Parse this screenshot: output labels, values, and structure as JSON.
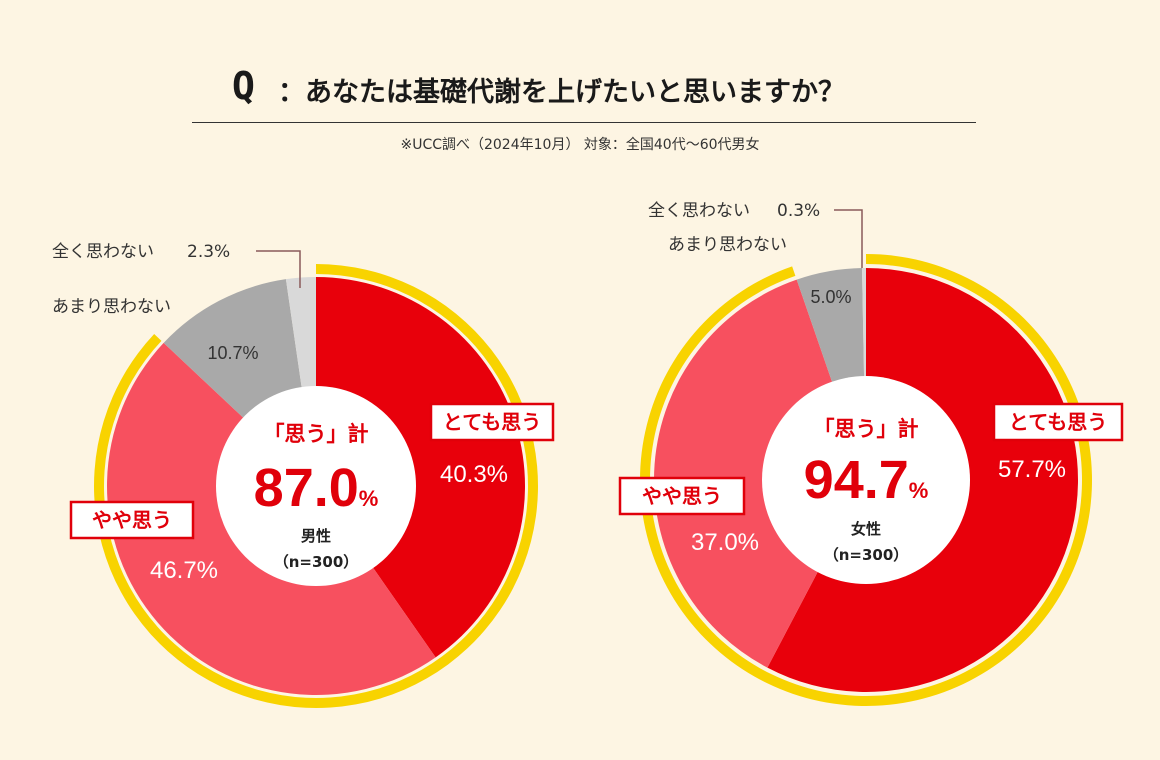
{
  "title": {
    "q": "Q",
    "text": "：あなたは基礎代謝を上げたいと思いますか？"
  },
  "note": "※UCC調べ（2024年10月） 対象：全国40代～60代男女",
  "colors": {
    "background": "#fdf5e3",
    "very_much": "#e8000b",
    "somewhat": "#f7505f",
    "not_really": "#a9a9a9",
    "not_at_all": "#d9d9d9",
    "ring": "#f8d300",
    "accent": "#e0000a"
  },
  "chart_data": [
    {
      "type": "pie",
      "group": "男性",
      "n_label": "（n=300）",
      "center_heading": "「思う」計",
      "center_value": "87.0",
      "center_unit": "%",
      "slices": [
        {
          "label": "とても思う",
          "value": 40.3,
          "value_text": "40.3%"
        },
        {
          "label": "やや思う",
          "value": 46.7,
          "value_text": "46.7%"
        },
        {
          "label": "あまり思わない",
          "value": 10.7,
          "value_text": "10.7%"
        },
        {
          "label": "全く思わない",
          "value": 2.3,
          "value_text": "2.3%"
        }
      ]
    },
    {
      "type": "pie",
      "group": "女性",
      "n_label": "（n=300）",
      "center_heading": "「思う」計",
      "center_value": "94.7",
      "center_unit": "%",
      "slices": [
        {
          "label": "とても思う",
          "value": 57.7,
          "value_text": "57.7%"
        },
        {
          "label": "やや思う",
          "value": 37.0,
          "value_text": "37.0%"
        },
        {
          "label": "あまり思わない",
          "value": 5.0,
          "value_text": "5.0%"
        },
        {
          "label": "全く思わない",
          "value": 0.3,
          "value_text": "0.3%"
        }
      ]
    }
  ]
}
